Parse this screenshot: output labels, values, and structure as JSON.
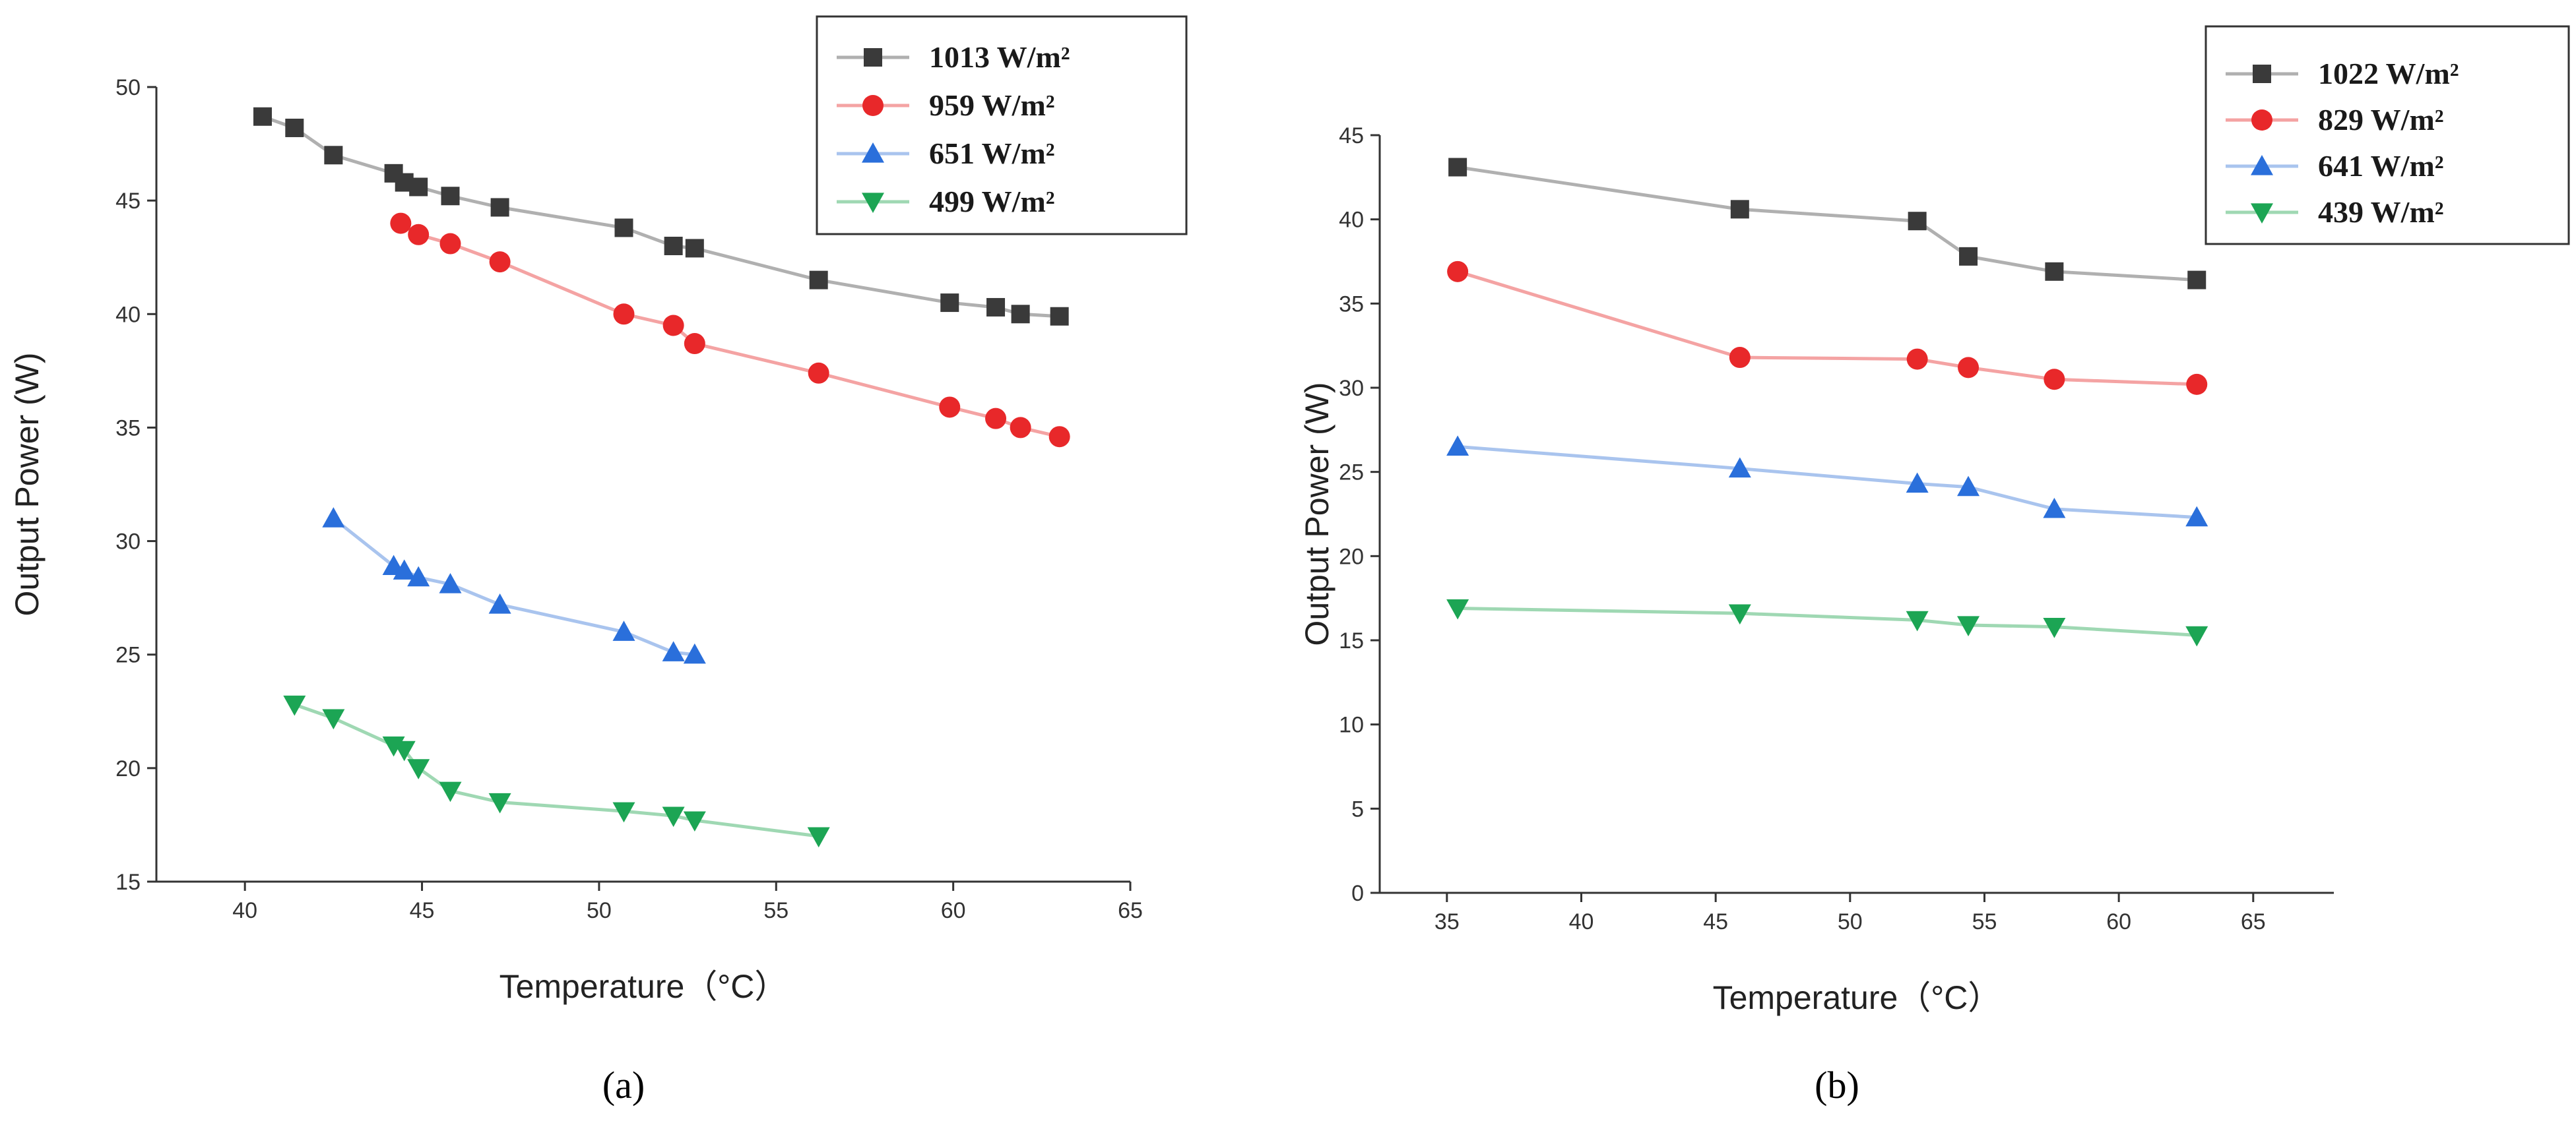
{
  "chart_data": [
    {
      "type": "line",
      "caption": "(a)",
      "xlabel": "Temperature（°C）",
      "ylabel": "Output Power (W)",
      "xlim": [
        37.5,
        65
      ],
      "ylim": [
        15,
        50
      ],
      "xticks": [
        40,
        45,
        50,
        55,
        60,
        65
      ],
      "yticks": [
        15,
        20,
        25,
        30,
        35,
        40,
        45,
        50
      ],
      "legend_position": "top-right",
      "series": [
        {
          "name": "1013 W/m²",
          "color": "#3a3a3a",
          "line_color": "#b0b0b0",
          "marker": "square",
          "x": [
            40.5,
            41.4,
            42.5,
            44.2,
            44.5,
            44.9,
            45.8,
            47.2,
            50.7,
            52.1,
            52.7,
            56.2,
            59.9,
            61.2,
            61.9,
            63.0
          ],
          "y": [
            48.7,
            48.2,
            47.0,
            46.2,
            45.8,
            45.6,
            45.2,
            44.7,
            43.8,
            43.0,
            42.9,
            41.5,
            40.5,
            40.3,
            40.0,
            39.9
          ]
        },
        {
          "name": "959 W/m²",
          "color": "#e8282a",
          "line_color": "#f4a3a3",
          "marker": "circle",
          "x": [
            44.4,
            44.9,
            45.8,
            47.2,
            50.7,
            52.1,
            52.7,
            56.2,
            59.9,
            61.2,
            61.9,
            63.0
          ],
          "y": [
            44.0,
            43.5,
            43.1,
            42.3,
            40.0,
            39.5,
            38.7,
            37.4,
            35.9,
            35.4,
            35.0,
            34.6
          ]
        },
        {
          "name": "651 W/m²",
          "color": "#2a6fdb",
          "line_color": "#a9c4ee",
          "marker": "triangle",
          "x": [
            42.5,
            44.2,
            44.5,
            44.9,
            45.8,
            47.2,
            50.7,
            52.1,
            52.7
          ],
          "y": [
            31.0,
            28.9,
            28.7,
            28.4,
            28.1,
            27.2,
            26.0,
            25.1,
            25.0
          ]
        },
        {
          "name": "499 W/m²",
          "color": "#1ca554",
          "line_color": "#9fd8b3",
          "marker": "triangle-down",
          "x": [
            41.4,
            42.5,
            44.2,
            44.5,
            44.9,
            45.8,
            47.2,
            50.7,
            52.1,
            52.7,
            56.2
          ],
          "y": [
            22.8,
            22.2,
            21.0,
            20.8,
            20.0,
            19.0,
            18.5,
            18.1,
            17.9,
            17.7,
            17.0
          ]
        }
      ]
    },
    {
      "type": "line",
      "caption": "(b)",
      "xlabel": "Temperature（°C）",
      "ylabel": "Output Power (W)",
      "xlim": [
        32.5,
        68
      ],
      "ylim": [
        0,
        45
      ],
      "xticks": [
        35,
        40,
        45,
        50,
        55,
        60,
        65
      ],
      "yticks": [
        0,
        5,
        10,
        15,
        20,
        25,
        30,
        35,
        40,
        45
      ],
      "legend_position": "top-right",
      "series": [
        {
          "name": "1022 W/m²",
          "color": "#3a3a3a",
          "line_color": "#b0b0b0",
          "marker": "square",
          "x": [
            35.4,
            45.9,
            52.5,
            54.4,
            57.6,
            62.9
          ],
          "y": [
            43.1,
            40.6,
            39.9,
            37.8,
            36.9,
            36.4
          ]
        },
        {
          "name": "829 W/m²",
          "color": "#e8282a",
          "line_color": "#f4a3a3",
          "marker": "circle",
          "x": [
            35.4,
            45.9,
            52.5,
            54.4,
            57.6,
            62.9
          ],
          "y": [
            36.9,
            31.8,
            31.7,
            31.2,
            30.5,
            30.2
          ]
        },
        {
          "name": "641 W/m²",
          "color": "#2a6fdb",
          "line_color": "#a9c4ee",
          "marker": "triangle",
          "x": [
            35.4,
            45.9,
            52.5,
            54.4,
            57.6,
            62.9
          ],
          "y": [
            26.5,
            25.2,
            24.3,
            24.1,
            22.8,
            22.3
          ]
        },
        {
          "name": "439 W/m²",
          "color": "#1ca554",
          "line_color": "#9fd8b3",
          "marker": "triangle-down",
          "x": [
            35.4,
            45.9,
            52.5,
            54.4,
            57.6,
            62.9
          ],
          "y": [
            16.9,
            16.6,
            16.2,
            15.9,
            15.8,
            15.3
          ]
        }
      ]
    }
  ]
}
